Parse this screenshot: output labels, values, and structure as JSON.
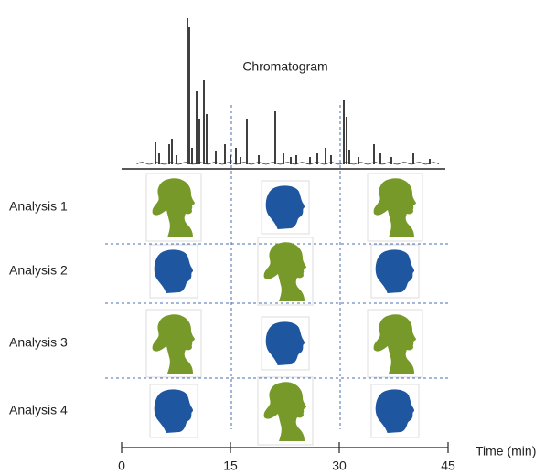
{
  "chromatogram": {
    "title": "Chromatogram"
  },
  "rows": [
    "Analysis 1",
    "Analysis 2",
    "Analysis 3",
    "Analysis 4"
  ],
  "time_axis": {
    "label": "Time (min)",
    "range": [
      0,
      45
    ],
    "ticks": [
      0,
      15,
      30,
      45
    ]
  }
}
